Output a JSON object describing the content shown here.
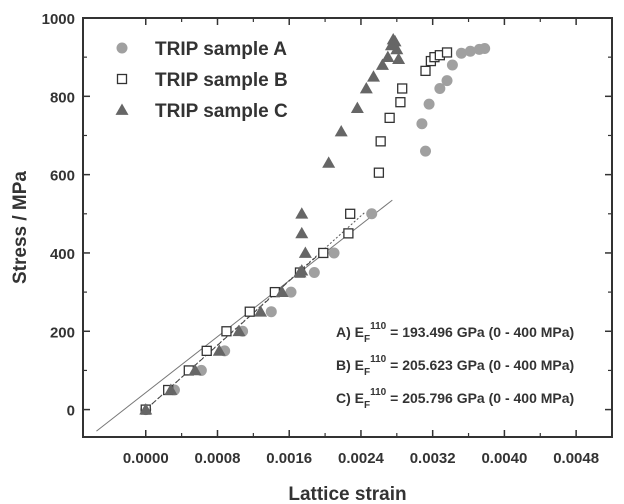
{
  "chart_data": {
    "type": "scatter",
    "xlabel": "Lattice strain",
    "ylabel": "Stress / MPa",
    "xlim": [
      -0.0007,
      0.0052
    ],
    "ylim": [
      -70,
      1000
    ],
    "x_ticks": [
      0.0,
      0.0008,
      0.0016,
      0.0024,
      0.0032,
      0.004,
      0.0048
    ],
    "x_tick_labels": [
      "0.0000",
      "0.0008",
      "0.0016",
      "0.0024",
      "0.0032",
      "0.0040",
      "0.0048"
    ],
    "y_ticks": [
      0,
      200,
      400,
      600,
      800,
      1000
    ],
    "y_tick_labels": [
      "0",
      "200",
      "400",
      "600",
      "800",
      "1000"
    ],
    "legend_position": "top-left",
    "series": [
      {
        "name": "TRIP sample A",
        "marker": "filled-circle",
        "color": "#a0a0a0",
        "points": [
          [
            0.0,
            0
          ],
          [
            0.00032,
            50
          ],
          [
            0.00062,
            100
          ],
          [
            0.00088,
            150
          ],
          [
            0.00108,
            200
          ],
          [
            0.0014,
            250
          ],
          [
            0.00162,
            300
          ],
          [
            0.00188,
            350
          ],
          [
            0.0021,
            400
          ],
          [
            0.00252,
            500
          ],
          [
            0.00312,
            660
          ],
          [
            0.00308,
            730
          ],
          [
            0.00316,
            780
          ],
          [
            0.00328,
            820
          ],
          [
            0.00336,
            840
          ],
          [
            0.00342,
            880
          ],
          [
            0.00352,
            910
          ],
          [
            0.00362,
            915
          ],
          [
            0.00372,
            920
          ],
          [
            0.00378,
            922
          ]
        ]
      },
      {
        "name": "TRIP sample B",
        "marker": "open-square",
        "color": "#333333",
        "points": [
          [
            0.0,
            0
          ],
          [
            0.00025,
            50
          ],
          [
            0.00048,
            100
          ],
          [
            0.00068,
            150
          ],
          [
            0.0009,
            200
          ],
          [
            0.00116,
            250
          ],
          [
            0.00144,
            300
          ],
          [
            0.00172,
            350
          ],
          [
            0.00198,
            400
          ],
          [
            0.00226,
            450
          ],
          [
            0.00228,
            500
          ],
          [
            0.0026,
            605
          ],
          [
            0.00262,
            685
          ],
          [
            0.00272,
            745
          ],
          [
            0.00284,
            785
          ],
          [
            0.00286,
            820
          ],
          [
            0.00312,
            865
          ],
          [
            0.00318,
            890
          ],
          [
            0.00322,
            900
          ],
          [
            0.00328,
            905
          ],
          [
            0.00336,
            912
          ]
        ]
      },
      {
        "name": "TRIP sample C",
        "marker": "filled-triangle",
        "color": "#666666",
        "points": [
          [
            0.0,
            0
          ],
          [
            0.00028,
            50
          ],
          [
            0.00055,
            100
          ],
          [
            0.00082,
            150
          ],
          [
            0.00104,
            200
          ],
          [
            0.00128,
            250
          ],
          [
            0.00152,
            300
          ],
          [
            0.00172,
            350
          ],
          [
            0.00174,
            355
          ],
          [
            0.00174,
            450
          ],
          [
            0.00178,
            400
          ],
          [
            0.00174,
            500
          ],
          [
            0.00204,
            630
          ],
          [
            0.00218,
            710
          ],
          [
            0.00236,
            770
          ],
          [
            0.00246,
            820
          ],
          [
            0.00254,
            850
          ],
          [
            0.00264,
            880
          ],
          [
            0.0027,
            900
          ],
          [
            0.00276,
            945
          ],
          [
            0.00278,
            940
          ],
          [
            0.0028,
            920
          ],
          [
            0.00282,
            895
          ],
          [
            0.00274,
            930
          ]
        ]
      }
    ],
    "fit_lines": [
      {
        "series": "TRIP sample A",
        "style": "solid",
        "color": "#777777",
        "x": [
          -0.00055,
          0.00275
        ],
        "y": [
          -55,
          535
        ]
      },
      {
        "series": "TRIP sample B",
        "style": "dotted",
        "color": "#555555",
        "x": [
          0.0,
          0.00245
        ],
        "y": [
          0,
          505
        ]
      },
      {
        "series": "TRIP sample C",
        "style": "dashed",
        "color": "#444444",
        "x": [
          0.0,
          0.0019
        ],
        "y": [
          0,
          390
        ]
      }
    ],
    "annotations": [
      {
        "prefix": "A) E",
        "sub": "F",
        "sup": "110",
        "suffix": " = 193.496 GPa (0 - 400 MPa)"
      },
      {
        "prefix": "B) E",
        "sub": "F",
        "sup": "110",
        "suffix": " = 205.623 GPa (0 - 400 MPa)"
      },
      {
        "prefix": "C) E",
        "sub": "F",
        "sup": "110",
        "suffix": " = 205.796 GPa (0 - 400 MPa)"
      }
    ]
  }
}
